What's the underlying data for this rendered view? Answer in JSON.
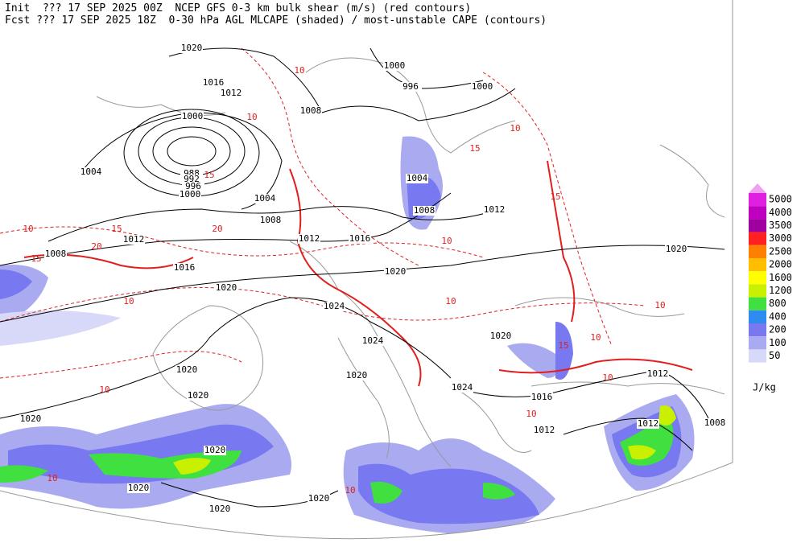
{
  "header": {
    "line1": "Init  ??? 17 SEP 2025 00Z  NCEP GFS 0-3 km bulk shear (m/s) (red contours)",
    "line2": "Fcst ??? 17 SEP 2025 18Z  0-30 hPa AGL MLCAPE (shaded) / most-unstable CAPE (contours)"
  },
  "legend": {
    "levels": [
      "5000",
      "4000",
      "3500",
      "3000",
      "2500",
      "2000",
      "1600",
      "1200",
      "800",
      "400",
      "200",
      "100",
      "50"
    ],
    "colors": [
      "#e020e0",
      "#c000c0",
      "#a000a0",
      "#ff2020",
      "#ff7f00",
      "#ffbf00",
      "#ffff00",
      "#c8f000",
      "#40e040",
      "#2e8cf0",
      "#7878f0",
      "#aaaaf0",
      "#d8d8f8"
    ],
    "unit": "J/kg"
  },
  "isobar_labels": [
    "1020",
    "1016",
    "1012",
    "1008",
    "1000",
    "1004",
    "988",
    "992",
    "996",
    "1000",
    "1004",
    "1008",
    "1012",
    "1012",
    "1016",
    "1008",
    "1016",
    "1020",
    "1020",
    "1024",
    "1024",
    "1020",
    "1020",
    "1020",
    "1020",
    "1024",
    "1016",
    "1012",
    "1012",
    "1012",
    "1008",
    "1020",
    "1020",
    "1020",
    "1020",
    "1020",
    "1000",
    "996",
    "1000",
    "1004",
    "1008",
    "1012",
    "1020"
  ],
  "shear_labels": [
    "10",
    "10",
    "15",
    "10",
    "15",
    "20",
    "15",
    "20",
    "10",
    "10",
    "15",
    "10",
    "10",
    "15",
    "10",
    "10",
    "10",
    "10",
    "15",
    "10",
    "10",
    "10"
  ]
}
